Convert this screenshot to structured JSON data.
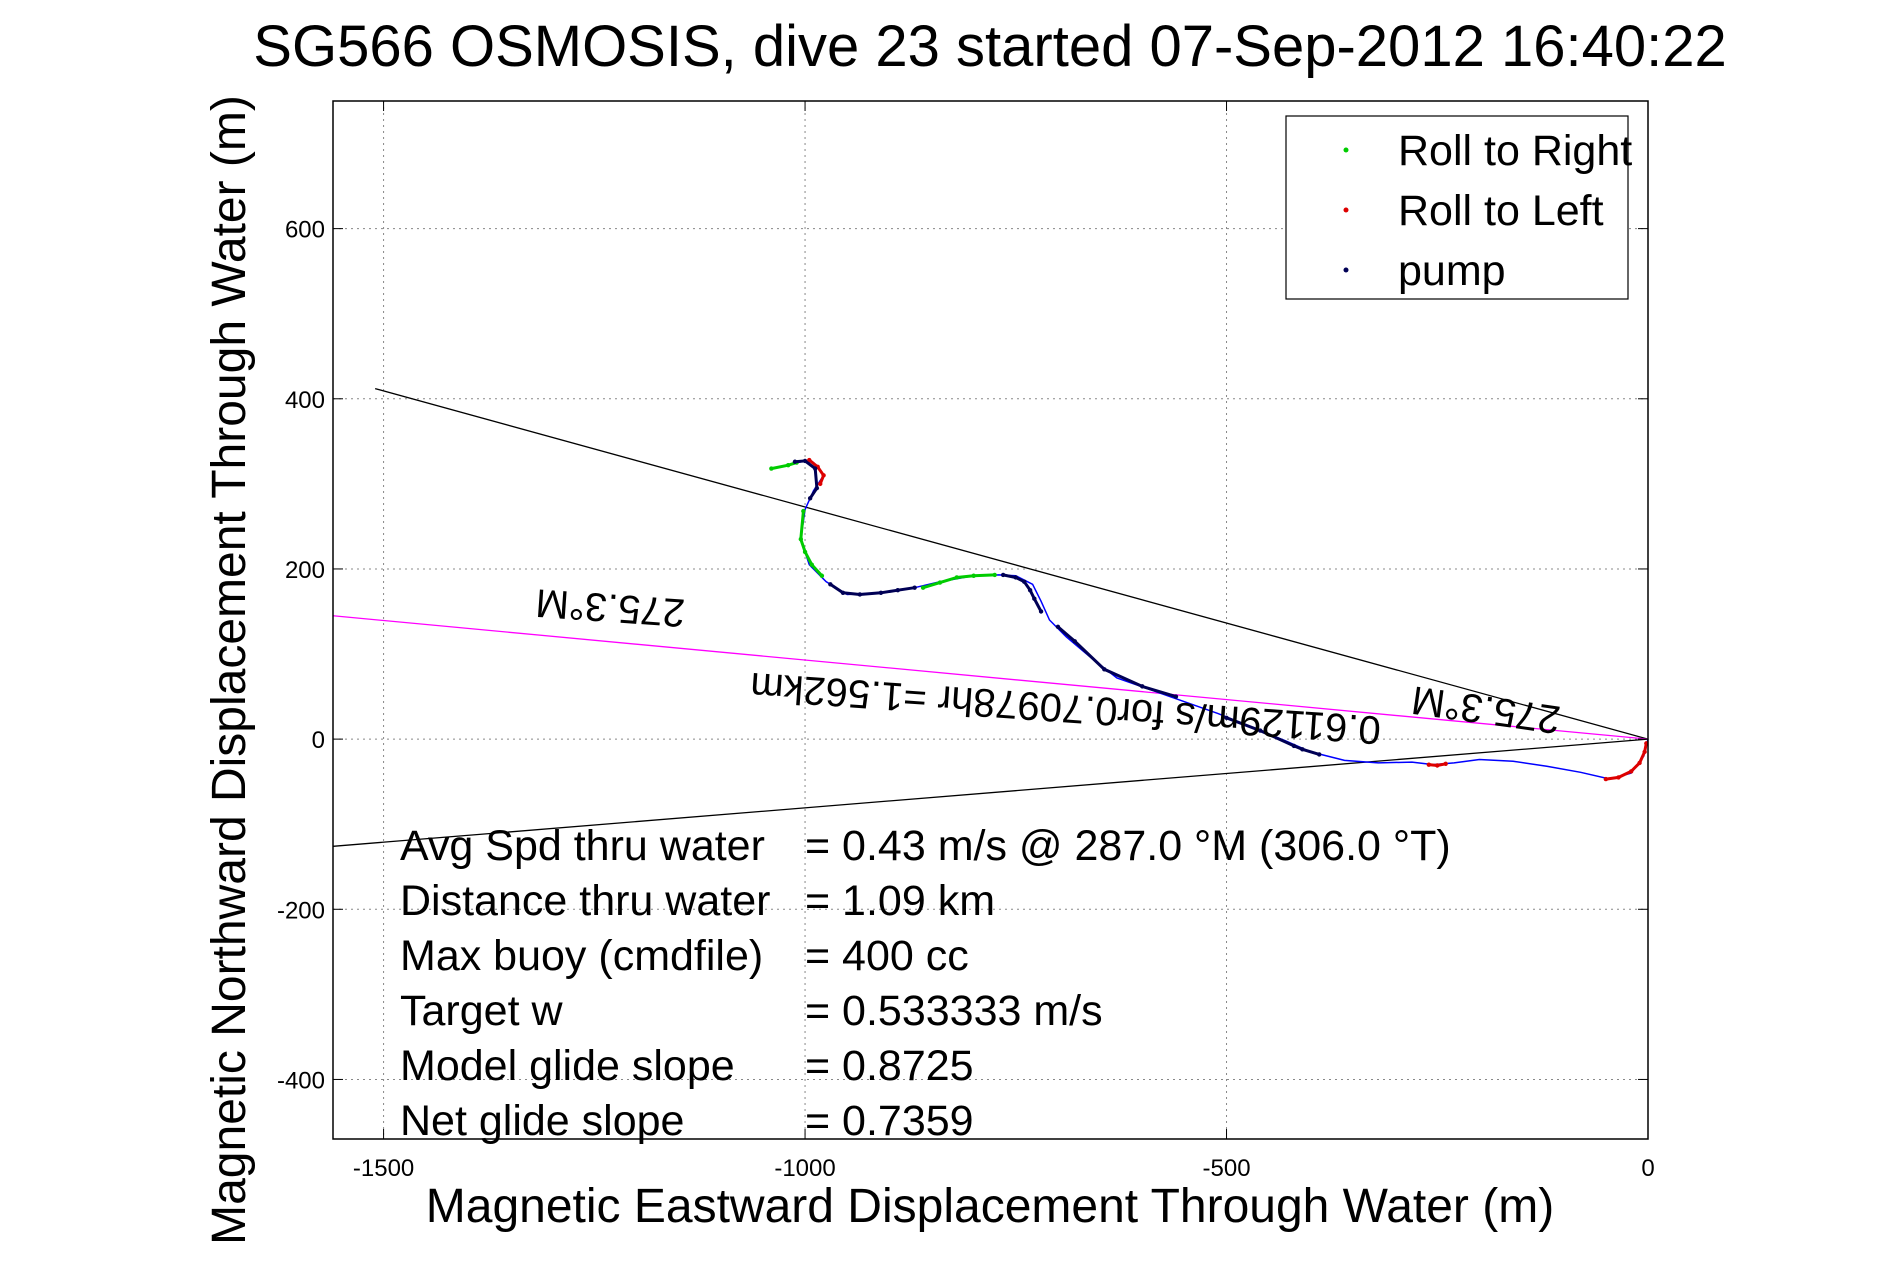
{
  "chart_data": {
    "type": "scatter",
    "title": "SG566 OSMOSIS, dive 23 started 07-Sep-2012 16:40:22",
    "xlabel": "Magnetic Eastward Displacement Through Water (m)",
    "ylabel": "Magnetic Northward Displacement Through Water (m)",
    "xlim": [
      -1560,
      0
    ],
    "ylim": [
      -470,
      750
    ],
    "x_ticks": [
      -1500,
      -1000,
      -500,
      0
    ],
    "y_ticks": [
      -400,
      -200,
      0,
      200,
      400,
      600
    ],
    "x_tick_labels": [
      "-1500",
      "-1000",
      "-500",
      "0"
    ],
    "y_tick_labels": [
      "-400",
      "-200",
      "0",
      "200",
      "400",
      "600"
    ],
    "grid": true,
    "legend_position": "top-right",
    "legend": [
      {
        "label": "Roll to Right",
        "color": "#00cc00"
      },
      {
        "label": "Roll to Left",
        "color": "#dd0000"
      },
      {
        "label": "pump",
        "color": "#000055"
      }
    ],
    "track_color": "#0000ff",
    "track": [
      [
        -1040,
        318
      ],
      [
        -1000,
        327
      ],
      [
        -990,
        325
      ],
      [
        -978,
        310
      ],
      [
        -990,
        292
      ],
      [
        -1000,
        270
      ],
      [
        -1005,
        235
      ],
      [
        -995,
        205
      ],
      [
        -975,
        185
      ],
      [
        -950,
        170
      ],
      [
        -910,
        172
      ],
      [
        -870,
        178
      ],
      [
        -840,
        185
      ],
      [
        -800,
        192
      ],
      [
        -770,
        193
      ],
      [
        -750,
        192
      ],
      [
        -730,
        182
      ],
      [
        -720,
        162
      ],
      [
        -710,
        140
      ],
      [
        -690,
        120
      ],
      [
        -660,
        95
      ],
      [
        -630,
        72
      ],
      [
        -590,
        58
      ],
      [
        -550,
        44
      ],
      [
        -510,
        30
      ],
      [
        -470,
        14
      ],
      [
        -430,
        -2
      ],
      [
        -400,
        -15
      ],
      [
        -360,
        -25
      ],
      [
        -320,
        -28
      ],
      [
        -280,
        -27
      ],
      [
        -255,
        -30
      ],
      [
        -230,
        -28
      ],
      [
        -200,
        -24
      ],
      [
        -160,
        -26
      ],
      [
        -120,
        -32
      ],
      [
        -80,
        -39
      ],
      [
        -45,
        -47
      ],
      [
        -20,
        -40
      ],
      [
        -5,
        -20
      ],
      [
        0,
        0
      ]
    ],
    "roll_right": [
      [
        [
          -1040,
          318
        ],
        [
          -1020,
          322
        ],
        [
          -1010,
          325
        ]
      ],
      [
        [
          -1002,
          268
        ],
        [
          -1005,
          235
        ],
        [
          -1000,
          220
        ],
        [
          -992,
          205
        ],
        [
          -980,
          192
        ]
      ],
      [
        [
          -860,
          178
        ],
        [
          -840,
          184
        ],
        [
          -820,
          190
        ],
        [
          -800,
          192
        ],
        [
          -775,
          193
        ]
      ]
    ],
    "roll_left": [
      [
        [
          -995,
          328
        ],
        [
          -985,
          320
        ],
        [
          -978,
          310
        ],
        [
          -982,
          300
        ]
      ],
      [
        [
          -260,
          -30
        ],
        [
          -250,
          -31
        ],
        [
          -240,
          -29
        ]
      ],
      [
        [
          -50,
          -47
        ],
        [
          -35,
          -45
        ],
        [
          -20,
          -38
        ],
        [
          -10,
          -28
        ],
        [
          -4,
          -15
        ],
        [
          -2,
          -5
        ]
      ]
    ],
    "pump": [
      [
        [
          -1012,
          326
        ],
        [
          -1000,
          327
        ],
        [
          -988,
          318
        ],
        [
          -986,
          295
        ],
        [
          -994,
          283
        ]
      ],
      [
        [
          -970,
          182
        ],
        [
          -955,
          172
        ],
        [
          -935,
          170
        ],
        [
          -910,
          172
        ],
        [
          -890,
          175
        ],
        [
          -870,
          178
        ]
      ],
      [
        [
          -765,
          193
        ],
        [
          -750,
          190
        ],
        [
          -740,
          185
        ],
        [
          -733,
          175
        ],
        [
          -728,
          165
        ],
        [
          -720,
          150
        ]
      ],
      [
        [
          -700,
          132
        ],
        [
          -680,
          115
        ],
        [
          -645,
          82
        ],
        [
          -600,
          62
        ],
        [
          -560,
          50
        ]
      ],
      [
        [
          -500,
          25
        ],
        [
          -460,
          10
        ],
        [
          -420,
          -8
        ],
        [
          -410,
          -12
        ],
        [
          -390,
          -18
        ]
      ]
    ],
    "lines": [
      {
        "name": "heading-line-upper",
        "color": "#000000",
        "points": [
          [
            -1510,
            412
          ],
          [
            0,
            0
          ]
        ]
      },
      {
        "name": "heading-line-lower",
        "color": "#000000",
        "points": [
          [
            -1560,
            -126
          ],
          [
            0,
            0
          ]
        ]
      },
      {
        "name": "heading-line-magenta",
        "color": "#ff00ff",
        "points": [
          [
            -1560,
            145
          ],
          [
            0,
            0
          ]
        ]
      }
    ],
    "annotations": [
      {
        "text": "275.3°M",
        "x": -1230,
        "y": 170,
        "rotate": 184
      },
      {
        "text": "0.61129m/s for0.70978hr =1.562km",
        "x": -690,
        "y": 52,
        "rotate": 184
      },
      {
        "text": "275.3°M",
        "x": -190,
        "y": 50,
        "rotate": 188
      }
    ],
    "stats": [
      {
        "label": "Avg Spd thru water",
        "value": "=  0.43 m/s @ 287.0 °M (306.0 °T)"
      },
      {
        "label": "Distance thru water",
        "value": "=  1.09 km"
      },
      {
        "label": "Max buoy (cmdfile)",
        "value": "= 400 cc"
      },
      {
        "label": "Target w",
        "value": "= 0.533333 m/s"
      },
      {
        "label": "Model glide slope",
        "value": "= 0.8725"
      },
      {
        "label": "Net glide slope",
        "value": "= 0.7359"
      }
    ]
  }
}
